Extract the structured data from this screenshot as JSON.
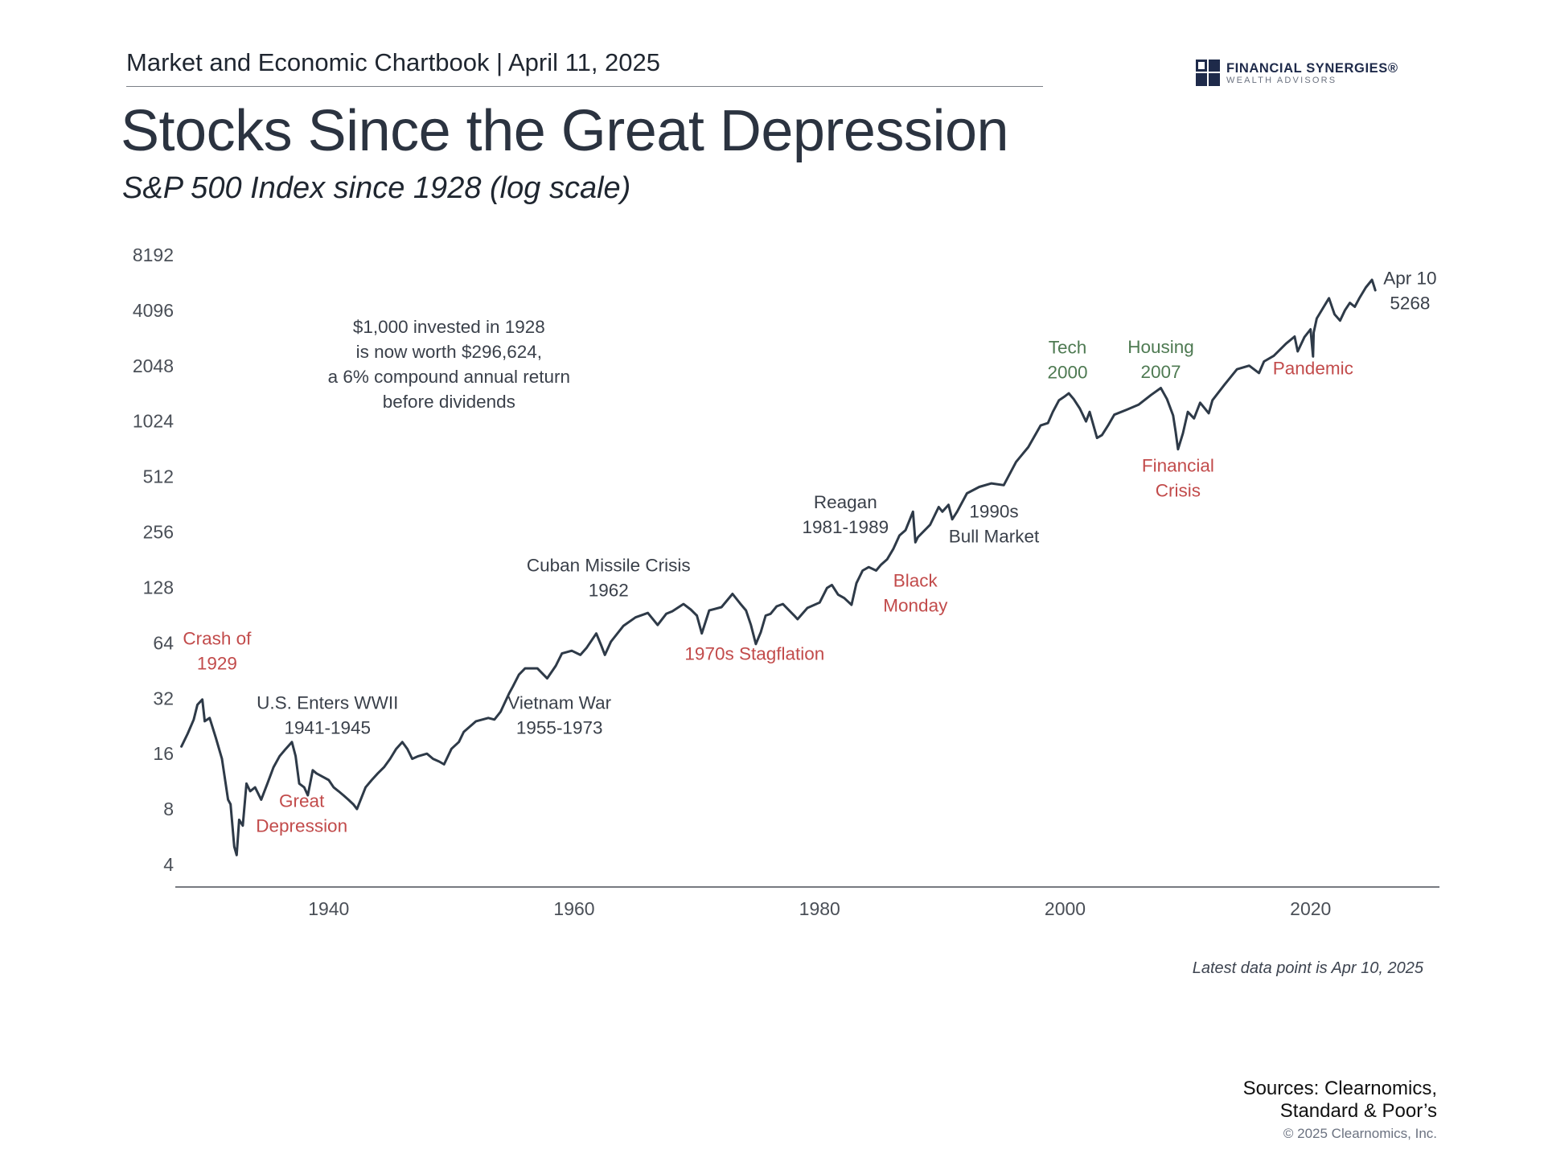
{
  "header": {
    "text": "Market and Economic Chartbook | April 11, 2025"
  },
  "logo": {
    "name": "FINANCIAL SYNERGIES®",
    "tagline": "WEALTH ADVISORS",
    "color": "#1e2a4a"
  },
  "colors": {
    "line": "#2e3a48",
    "crisis": "#c24b4b",
    "peak": "#4e7a52",
    "event": "#3a404a",
    "axis": "#4a4f57"
  },
  "chart_data": {
    "type": "line",
    "title": "Stocks Since the Great Depression",
    "subtitle": "S&P 500 Index since 1928 (log scale)",
    "xlabel": "",
    "ylabel": "",
    "y_scale": "log2",
    "xlim": [
      1927.5,
      2030.5
    ],
    "ylim": [
      4,
      8192
    ],
    "x_ticks": [
      1940,
      1960,
      1980,
      2000,
      2020
    ],
    "y_ticks": [
      4,
      8,
      16,
      32,
      64,
      128,
      256,
      512,
      1024,
      2048,
      4096,
      8192
    ],
    "grid": false,
    "series": [
      {
        "values_x": [
          1928.0,
          1928.5,
          1929.0,
          1929.3,
          1929.7,
          1929.9,
          1930.3,
          1930.8,
          1931.3,
          1931.8,
          1932.0,
          1932.3,
          1932.5,
          1932.7,
          1933.0,
          1933.3,
          1933.6,
          1934.0,
          1934.5,
          1935.0,
          1935.5,
          1936.0,
          1936.5,
          1937.0,
          1937.3,
          1937.6,
          1938.0,
          1938.3,
          1938.7,
          1939.0,
          1939.5,
          1940.0,
          1940.4,
          1940.8,
          1941.2,
          1941.6,
          1942.0,
          1942.3,
          1942.6,
          1943.0,
          1943.5,
          1944.0,
          1944.5,
          1945.0,
          1945.5,
          1946.0,
          1946.4,
          1946.8,
          1947.3,
          1948.0,
          1948.5,
          1949.0,
          1949.4,
          1950.0,
          1950.6,
          1951.0,
          1952.0,
          1953.0,
          1953.5,
          1954.0,
          1954.7,
          1955.0,
          1955.5,
          1956.0,
          1957.0,
          1957.8,
          1958.5,
          1959.0,
          1959.8,
          1960.5,
          1961.0,
          1961.8,
          1962.2,
          1962.5,
          1963.0,
          1964.0,
          1965.0,
          1966.0,
          1966.8,
          1967.5,
          1968.0,
          1968.9,
          1969.5,
          1970.0,
          1970.4,
          1971.0,
          1972.0,
          1972.9,
          1973.5,
          1974.0,
          1974.4,
          1974.8,
          1975.2,
          1975.6,
          1976.0,
          1976.5,
          1977.0,
          1978.0,
          1978.2,
          1979.0,
          1980.0,
          1980.6,
          1981.0,
          1981.5,
          1982.0,
          1982.6,
          1983.0,
          1983.5,
          1984.0,
          1984.6,
          1985.0,
          1985.5,
          1986.0,
          1986.5,
          1987.0,
          1987.6,
          1987.8,
          1988.0,
          1989.0,
          1989.7,
          1990.0,
          1990.5,
          1990.8,
          1991.2,
          1992.0,
          1993.0,
          1994.0,
          1995.0,
          1996.0,
          1997.0,
          1998.0,
          1998.6,
          1999.0,
          1999.5,
          2000.0,
          2000.3,
          2000.7,
          2001.2,
          2001.7,
          2002.0,
          2002.6,
          2003.0,
          2003.5,
          2004.0,
          2005.0,
          2006.0,
          2007.0,
          2007.8,
          2008.3,
          2008.8,
          2009.0,
          2009.2,
          2009.6,
          2010.0,
          2010.5,
          2011.0,
          2011.7,
          2012.0,
          2013.0,
          2014.0,
          2015.0,
          2015.8,
          2016.2,
          2017.0,
          2018.0,
          2018.7,
          2018.95,
          2019.5,
          2020.0,
          2020.2,
          2020.25,
          2020.5,
          2021.0,
          2021.5,
          2021.95,
          2022.4,
          2022.8,
          2023.2,
          2023.6,
          2024.0,
          2024.5,
          2025.0,
          2025.15,
          2025.27
        ],
        "values_y": [
          17.5,
          20.5,
          24.5,
          29.5,
          31.5,
          24.0,
          25.0,
          19.5,
          15.0,
          9.0,
          8.5,
          5.0,
          4.5,
          7.0,
          6.5,
          11.0,
          10.0,
          10.5,
          9.0,
          11.0,
          13.5,
          15.5,
          17.0,
          18.5,
          15.5,
          11.0,
          10.5,
          9.5,
          13.0,
          12.5,
          12.0,
          11.5,
          10.5,
          10.0,
          9.5,
          9.0,
          8.5,
          8.0,
          9.0,
          10.5,
          11.5,
          12.5,
          13.5,
          15.0,
          17.0,
          18.5,
          17.0,
          15.0,
          15.5,
          16.0,
          15.0,
          14.5,
          14.0,
          17.0,
          18.5,
          21.0,
          24.0,
          25.0,
          24.5,
          27.0,
          34.0,
          37.0,
          43.0,
          46.5,
          46.5,
          41.0,
          48.0,
          56.0,
          58.0,
          55.0,
          60.0,
          72.0,
          62.0,
          55.0,
          65.0,
          79.0,
          88.0,
          93.0,
          80.0,
          92.0,
          95.0,
          104.0,
          97.0,
          90.0,
          72.0,
          96.0,
          100.0,
          118.0,
          105.0,
          96.0,
          80.0,
          63.0,
          73.0,
          90.0,
          92.0,
          101.0,
          104.0,
          89.0,
          86.0,
          99.0,
          106.0,
          127.0,
          132.0,
          117.0,
          112.0,
          103.0,
          135.0,
          158.0,
          165.0,
          158.0,
          170.0,
          182.0,
          207.0,
          245.0,
          262.0,
          330.0,
          225.0,
          240.0,
          280.0,
          350.0,
          330.0,
          360.0,
          300.0,
          330.0,
          415.0,
          450.0,
          470.0,
          460.0,
          615.0,
          740.0,
          970.0,
          1000.0,
          1150.0,
          1330.0,
          1400.0,
          1450.0,
          1350.0,
          1200.0,
          1020.0,
          1150.0,
          830.0,
          860.0,
          970.0,
          1110.0,
          1180.0,
          1260.0,
          1420.0,
          1550.0,
          1350.0,
          1100.0,
          900.0,
          720.0,
          880.0,
          1150.0,
          1060.0,
          1290.0,
          1130.0,
          1330.0,
          1620.0,
          1960.0,
          2050.0,
          1870.0,
          2160.0,
          2320.0,
          2700.0,
          2950.0,
          2450.0,
          2930.0,
          3230.0,
          2300.0,
          3100.0,
          3700.0,
          4200.0,
          4770.0,
          3900.0,
          3600.0,
          4100.0,
          4500.0,
          4280.0,
          4800.0,
          5450.0,
          6000.0,
          5600.0,
          5268.0
        ]
      }
    ],
    "annotations": [
      {
        "lines": [
          "Crash of",
          "1929"
        ],
        "kind": "crisis",
        "x": 1930.9,
        "y": 58
      },
      {
        "lines": [
          "Great",
          "Depression"
        ],
        "kind": "crisis",
        "x": 1937.8,
        "y": 7.6
      },
      {
        "lines": [
          "U.S. Enters WWII",
          "1941-1945"
        ],
        "kind": "event",
        "x": 1939.9,
        "y": 26
      },
      {
        "lines": [
          "$1,000 invested in 1928",
          "is now worth $296,624,",
          "a 6% compound annual return",
          "before dividends"
        ],
        "kind": "event",
        "x": 1949.8,
        "y": 2100
      },
      {
        "lines": [
          "Vietnam War",
          "1955-1973"
        ],
        "kind": "event",
        "x": 1958.8,
        "y": 26
      },
      {
        "lines": [
          "Cuban Missile Crisis",
          "1962"
        ],
        "kind": "event",
        "x": 1962.8,
        "y": 145
      },
      {
        "lines": [
          "1970s Stagflation"
        ],
        "kind": "crisis",
        "x": 1974.7,
        "y": 56
      },
      {
        "lines": [
          "Reagan",
          "1981-1989"
        ],
        "kind": "event",
        "x": 1982.1,
        "y": 320
      },
      {
        "lines": [
          "Black",
          "Monday"
        ],
        "kind": "crisis",
        "x": 1987.8,
        "y": 120
      },
      {
        "lines": [
          "1990s",
          "Bull Market"
        ],
        "kind": "event",
        "x": 1994.2,
        "y": 285
      },
      {
        "lines": [
          "Tech",
          "2000"
        ],
        "kind": "peak",
        "x": 2000.2,
        "y": 2210
      },
      {
        "lines": [
          "Housing",
          "2007"
        ],
        "kind": "peak",
        "x": 2007.8,
        "y": 2225
      },
      {
        "lines": [
          "Financial",
          "Crisis"
        ],
        "kind": "crisis",
        "x": 2009.2,
        "y": 505
      },
      {
        "lines": [
          "Pandemic"
        ],
        "kind": "crisis",
        "x": 2020.2,
        "y": 1990
      },
      {
        "lines": [
          "Apr 10",
          "5268"
        ],
        "kind": "event",
        "x": 2028.1,
        "y": 5250
      }
    ]
  },
  "footnote": "Latest data point is Apr 10, 2025",
  "sources": [
    "Sources: Clearnomics,",
    "Standard & Poor’s"
  ],
  "copyright": "© 2025 Clearnomics, Inc."
}
